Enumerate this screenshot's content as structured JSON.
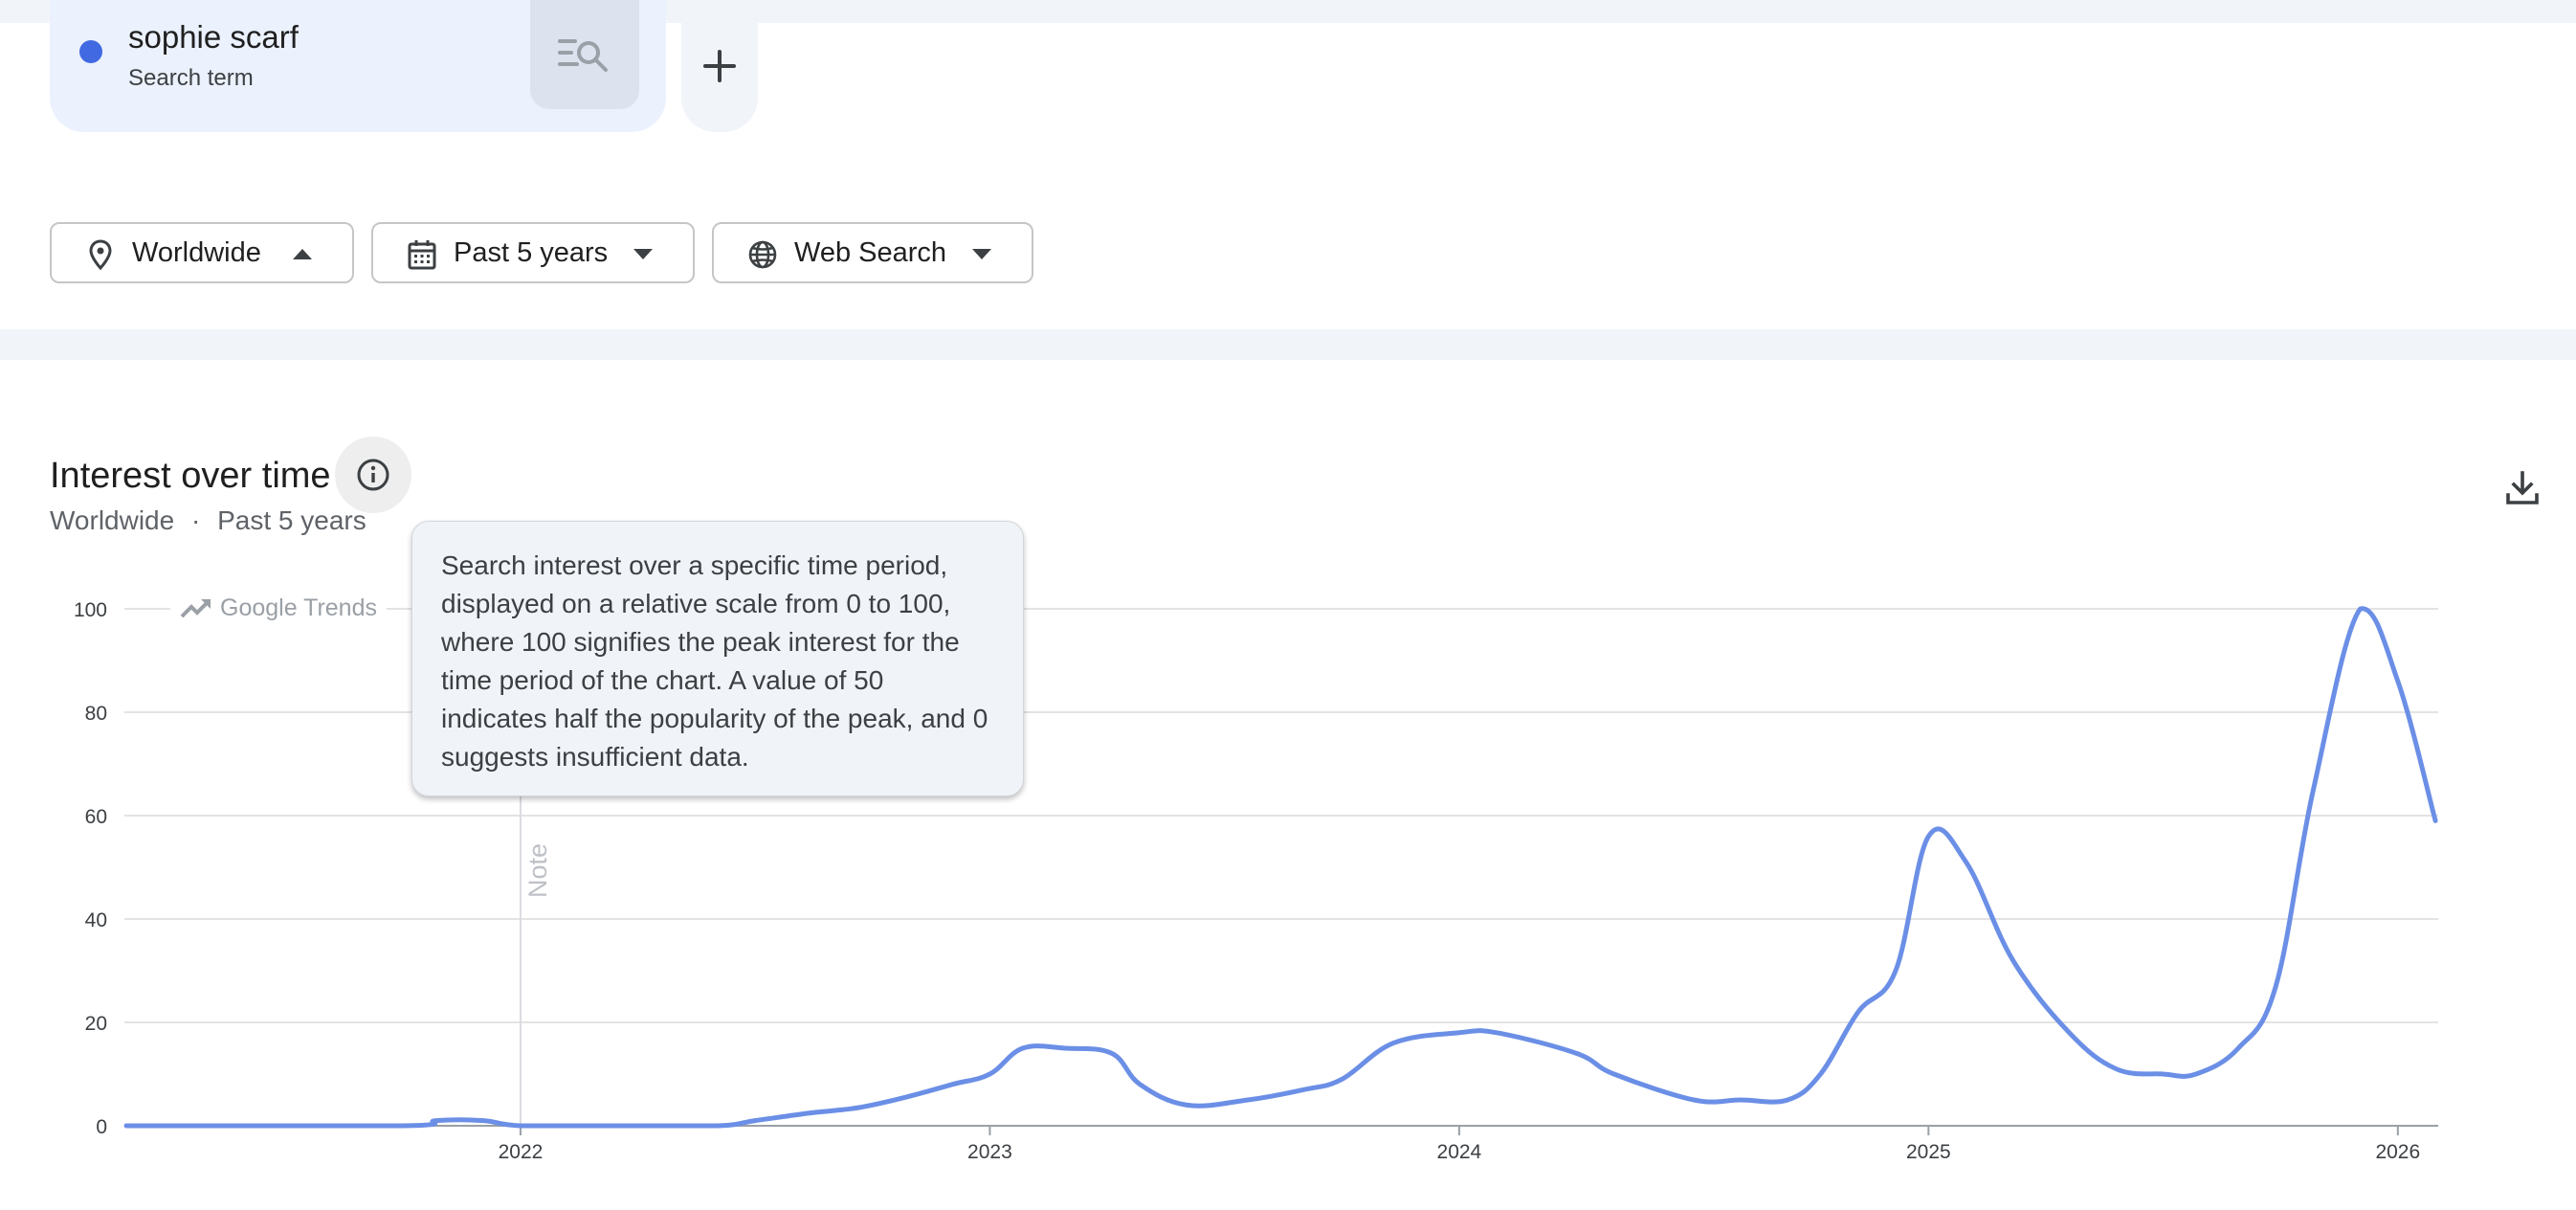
{
  "search_term": {
    "name": "sophie scarf",
    "type": "Search term",
    "dot_color": "#4169e1"
  },
  "filters": {
    "region": "Worldwide",
    "period": "Past 5 years",
    "property": "Web Search"
  },
  "section": {
    "title": "Interest over time",
    "subtitle_region": "Worldwide",
    "subtitle_sep": "·",
    "subtitle_period": "Past 5 years"
  },
  "tooltip": {
    "text": "Search interest over a specific time period, displayed on a relative scale from 0 to 100, where 100 signifies the peak interest for the time period of the chart. A value of 50 indicates half the popularity of the peak, and 0 suggests insufficient data."
  },
  "branding": {
    "label": "Google Trends"
  },
  "icons": {
    "location": "location-pin-icon",
    "calendar": "calendar-icon",
    "globe": "globe-icon",
    "info": "info-icon",
    "download": "download-icon",
    "add": "plus-icon",
    "search_term_search": "search-list-icon"
  },
  "chart_data": {
    "type": "line",
    "ylim": [
      0,
      100
    ],
    "y_ticks": [
      "0",
      "20",
      "40",
      "60",
      "80",
      "100"
    ],
    "x_tick_labels": [
      "2022",
      "2023",
      "2024",
      "2025",
      "2026"
    ],
    "x_tick_years": [
      2022,
      2023,
      2024,
      2025,
      2026
    ],
    "x_range": [
      2021.156,
      2026.086
    ],
    "grid": true,
    "line_color": "#6b8fe6",
    "annotation": {
      "label": "Note",
      "x": 2022.0
    },
    "series": [
      {
        "x": [
          2021.16,
          2021.75,
          2021.82,
          2021.92,
          2022.0,
          2022.2,
          2022.42,
          2022.5,
          2022.62,
          2022.72,
          2022.82,
          2022.92,
          2023.0,
          2023.07,
          2023.16,
          2023.26,
          2023.32,
          2023.42,
          2023.55,
          2023.67,
          2023.75,
          2023.86,
          2024.0,
          2024.08,
          2024.25,
          2024.33,
          2024.5,
          2024.6,
          2024.7,
          2024.77,
          2024.85,
          2024.93,
          2025.0,
          2025.08,
          2025.18,
          2025.3,
          2025.4,
          2025.5,
          2025.57,
          2025.66,
          2025.74,
          2025.82,
          2025.92,
          2026.0,
          2026.08
        ],
        "values": [
          0,
          0,
          1,
          1,
          0,
          0,
          0,
          1,
          2.5,
          3.5,
          5.5,
          8,
          10,
          15,
          15,
          14,
          8,
          4,
          5,
          7,
          9,
          16,
          18,
          18,
          14,
          10,
          5,
          5,
          5,
          10,
          22,
          30,
          56,
          51,
          32,
          18,
          11,
          10,
          10,
          15,
          27,
          65,
          100,
          86,
          59
        ]
      }
    ]
  }
}
